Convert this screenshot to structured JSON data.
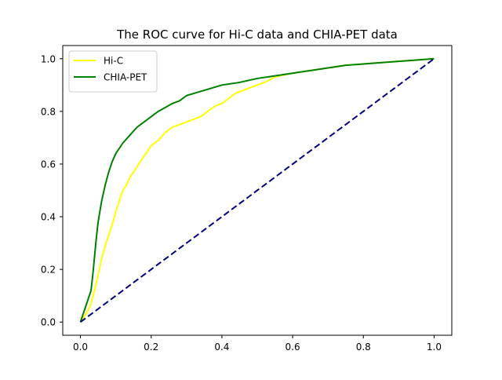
{
  "chart_data": {
    "type": "line",
    "title": "The ROC curve for Hi-C data and CHIA-PET data",
    "xlabel": "",
    "ylabel": "",
    "xlim": [
      -0.05,
      1.05
    ],
    "ylim": [
      -0.05,
      1.05
    ],
    "xticks": [
      0.0,
      0.2,
      0.4,
      0.6,
      0.8,
      1.0
    ],
    "yticks": [
      0.0,
      0.2,
      0.4,
      0.6,
      0.8,
      1.0
    ],
    "xtick_labels": [
      "0.0",
      "0.2",
      "0.4",
      "0.6",
      "0.8",
      "1.0"
    ],
    "ytick_labels": [
      "0.0",
      "0.2",
      "0.4",
      "0.6",
      "0.8",
      "1.0"
    ],
    "grid": false,
    "legend_position": "top-left",
    "series": [
      {
        "name": "Hi-C",
        "color": "#ffff00",
        "style": "solid",
        "x": [
          0.0,
          0.01,
          0.02,
          0.03,
          0.04,
          0.05,
          0.06,
          0.07,
          0.08,
          0.09,
          0.1,
          0.11,
          0.12,
          0.13,
          0.14,
          0.15,
          0.16,
          0.17,
          0.18,
          0.19,
          0.2,
          0.22,
          0.24,
          0.26,
          0.28,
          0.3,
          0.32,
          0.34,
          0.36,
          0.38,
          0.4,
          0.42,
          0.44,
          0.46,
          0.48,
          0.5,
          0.52,
          0.55,
          0.58,
          0.6,
          0.65,
          0.7,
          0.75,
          0.8,
          0.85,
          0.9,
          0.95,
          1.0
        ],
        "y": [
          0.0,
          0.02,
          0.04,
          0.07,
          0.12,
          0.18,
          0.24,
          0.29,
          0.33,
          0.37,
          0.42,
          0.46,
          0.5,
          0.52,
          0.55,
          0.57,
          0.59,
          0.61,
          0.63,
          0.65,
          0.67,
          0.69,
          0.72,
          0.74,
          0.75,
          0.76,
          0.77,
          0.78,
          0.8,
          0.82,
          0.83,
          0.85,
          0.87,
          0.88,
          0.89,
          0.9,
          0.91,
          0.93,
          0.94,
          0.945,
          0.955,
          0.965,
          0.975,
          0.98,
          0.985,
          0.99,
          0.995,
          1.0
        ]
      },
      {
        "name": "CHIA-PET",
        "color": "#008000",
        "style": "solid",
        "x": [
          0.0,
          0.01,
          0.02,
          0.03,
          0.035,
          0.04,
          0.045,
          0.05,
          0.06,
          0.07,
          0.08,
          0.09,
          0.1,
          0.12,
          0.14,
          0.16,
          0.18,
          0.2,
          0.22,
          0.24,
          0.26,
          0.28,
          0.3,
          0.35,
          0.4,
          0.45,
          0.5,
          0.55,
          0.6,
          0.65,
          0.7,
          0.75,
          0.8,
          0.85,
          0.9,
          0.95,
          1.0
        ],
        "y": [
          0.0,
          0.04,
          0.08,
          0.12,
          0.18,
          0.25,
          0.32,
          0.38,
          0.46,
          0.52,
          0.57,
          0.61,
          0.64,
          0.68,
          0.71,
          0.74,
          0.76,
          0.78,
          0.8,
          0.815,
          0.83,
          0.84,
          0.86,
          0.88,
          0.9,
          0.91,
          0.925,
          0.935,
          0.945,
          0.955,
          0.965,
          0.975,
          0.98,
          0.985,
          0.99,
          0.995,
          1.0
        ]
      },
      {
        "name": "",
        "color": "#000080",
        "style": "dashed",
        "x": [
          0.0,
          1.0
        ],
        "y": [
          0.0,
          1.0
        ]
      }
    ]
  }
}
